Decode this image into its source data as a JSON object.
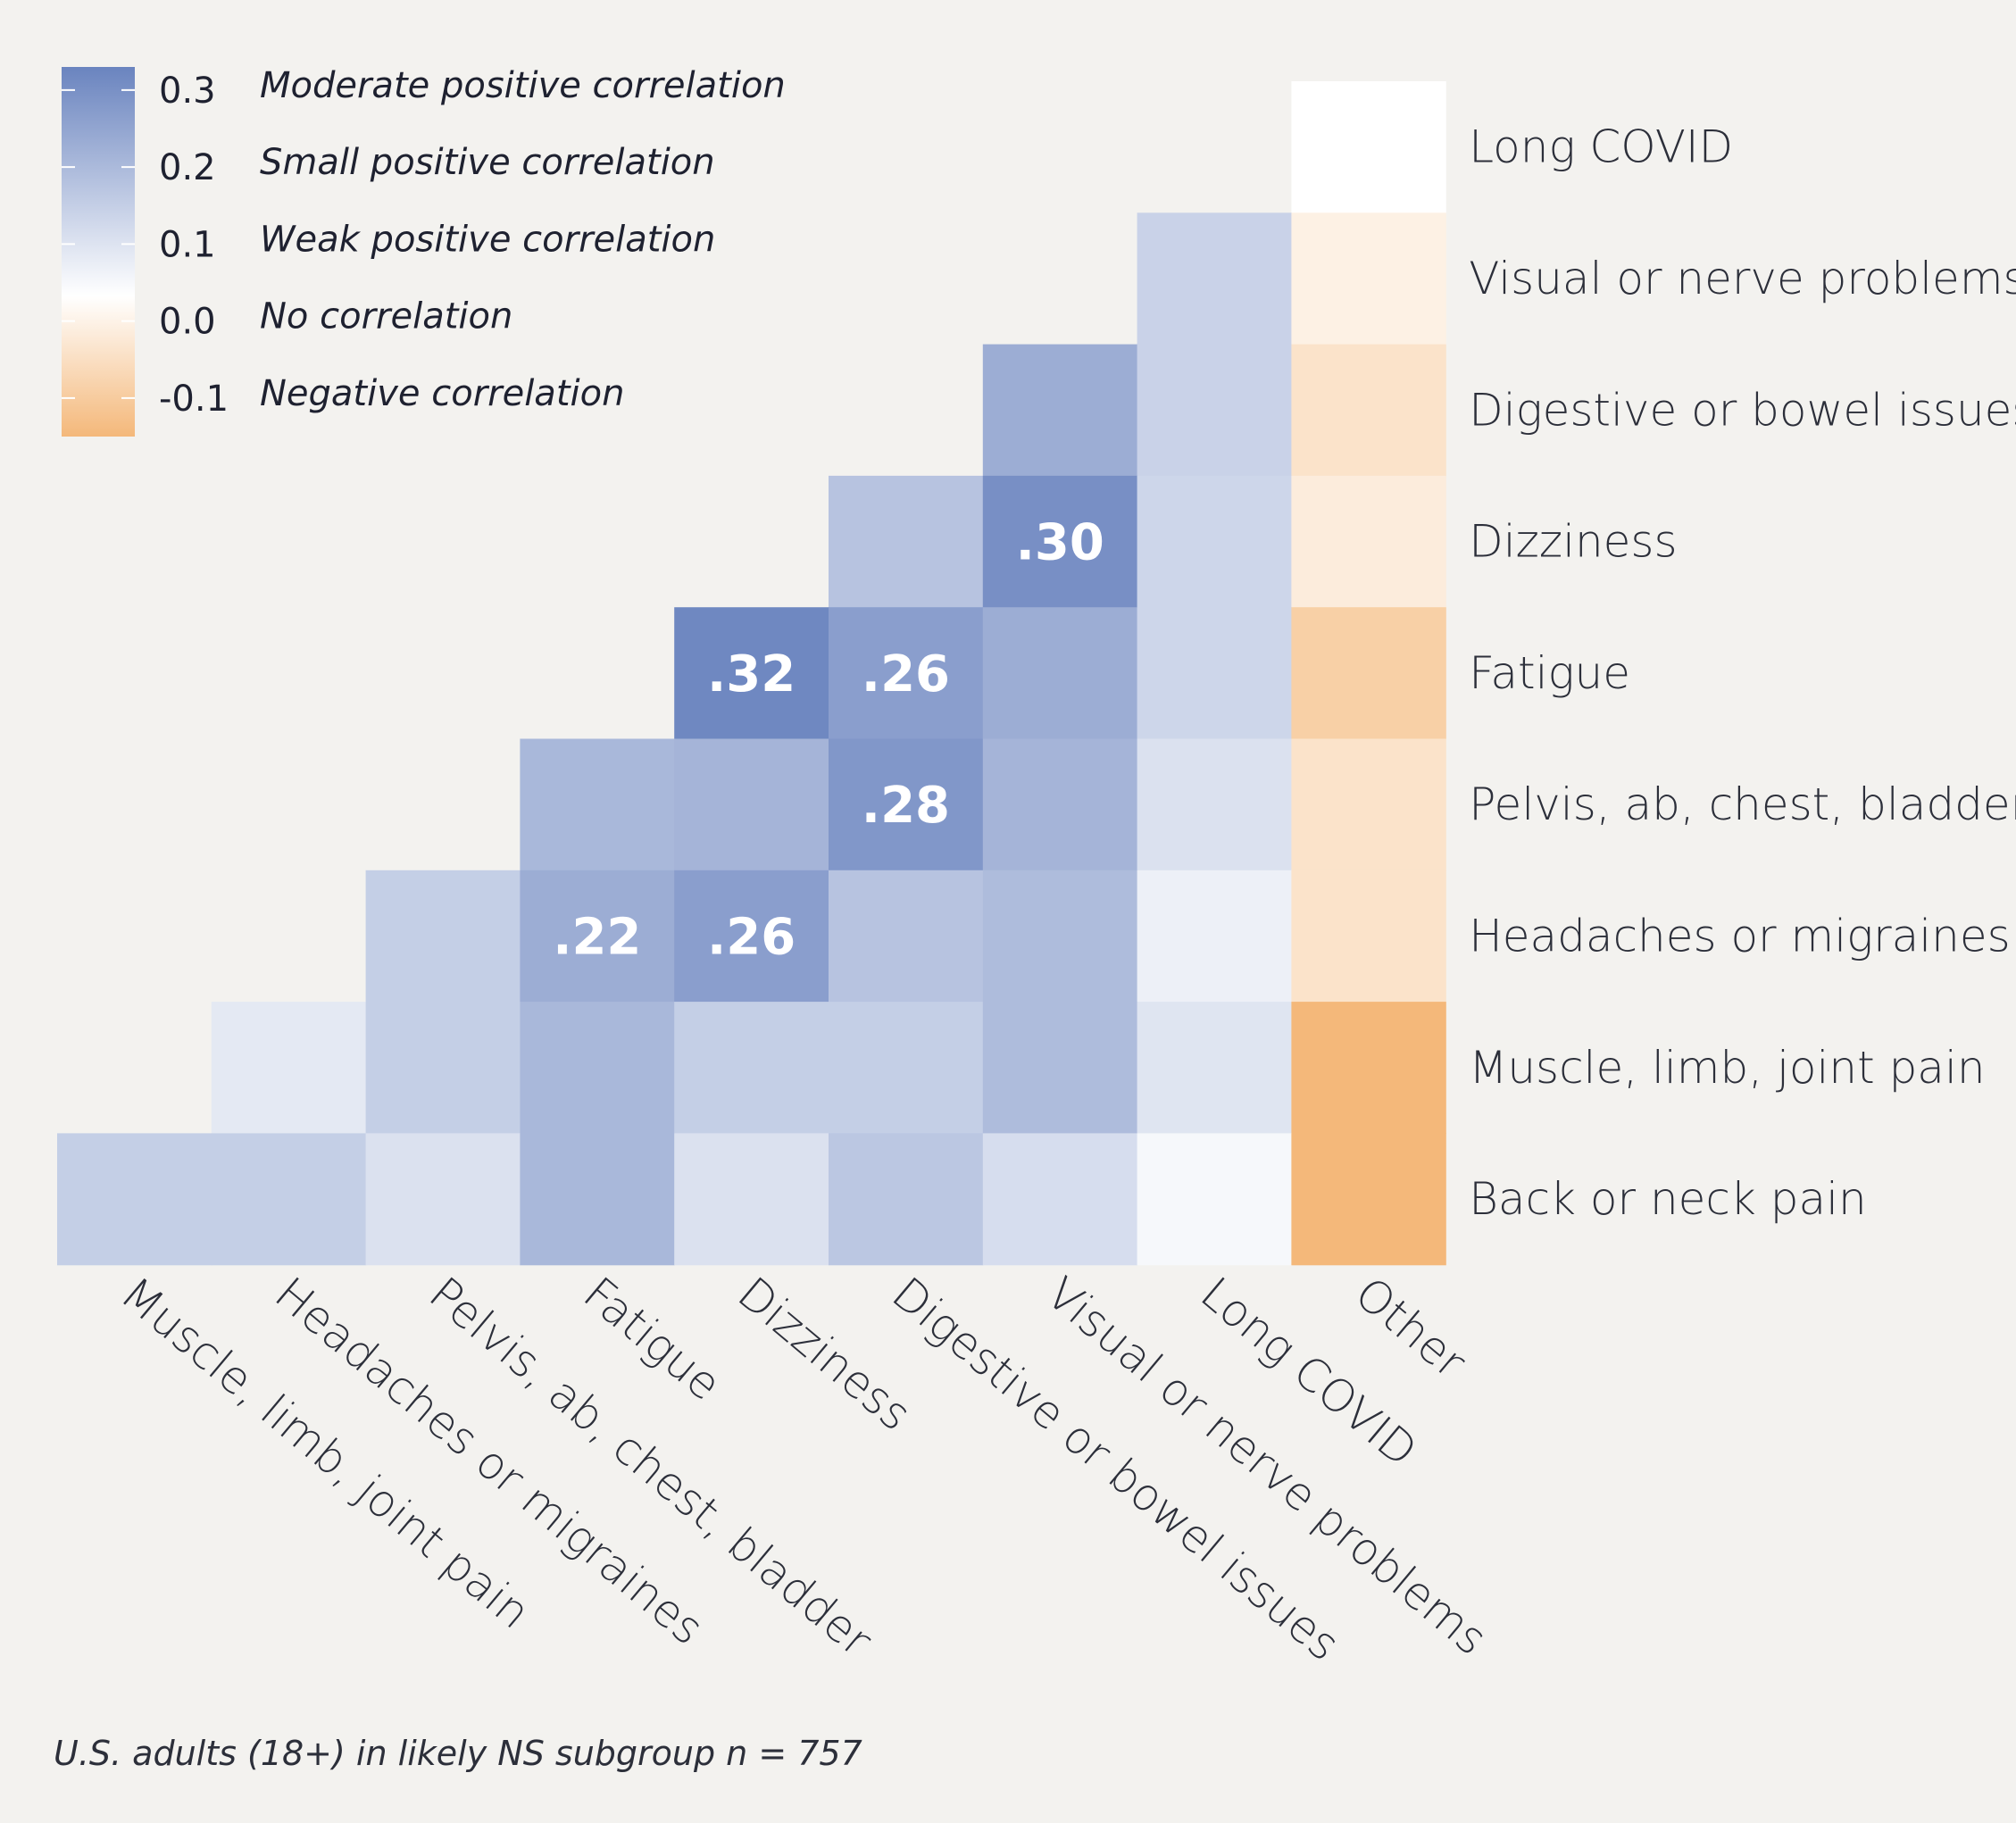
{
  "chart_data": {
    "type": "heatmap",
    "rows": [
      "Long COVID",
      "Visual or nerve problems",
      "Digestive or bowel issues",
      "Dizziness",
      "Fatigue",
      "Pelvis, ab, chest, bladder",
      "Headaches or migraines",
      "Muscle, limb, joint pain",
      "Back or neck pain"
    ],
    "columns": [
      "Muscle, limb, joint pain",
      "Headaches or migraines",
      "Pelvis, ab, chest, bladder",
      "Fatigue",
      "Dizziness",
      "Digestive or bowel issues",
      "Visual or nerve problems",
      "Long COVID",
      "Other"
    ],
    "values": [
      [
        null,
        null,
        null,
        null,
        null,
        null,
        null,
        null,
        0.0
      ],
      [
        null,
        null,
        null,
        null,
        null,
        null,
        null,
        0.12,
        -0.03
      ],
      [
        null,
        null,
        null,
        null,
        null,
        null,
        0.22,
        0.12,
        -0.06
      ],
      [
        null,
        null,
        null,
        null,
        null,
        0.16,
        0.3,
        0.11,
        -0.04
      ],
      [
        null,
        null,
        null,
        null,
        0.32,
        0.26,
        0.22,
        0.11,
        -0.1
      ],
      [
        null,
        null,
        null,
        0.19,
        0.2,
        0.28,
        0.2,
        0.08,
        -0.06
      ],
      [
        null,
        null,
        0.13,
        0.22,
        0.26,
        0.16,
        0.18,
        0.04,
        -0.06
      ],
      [
        null,
        0.06,
        0.13,
        0.19,
        0.13,
        0.13,
        0.18,
        0.07,
        -0.15
      ],
      [
        0.13,
        0.13,
        0.08,
        0.19,
        0.08,
        0.15,
        0.09,
        0.02,
        -0.15
      ]
    ],
    "cell_labels": [
      {
        "row": 3,
        "col": 6,
        "text": ".30"
      },
      {
        "row": 4,
        "col": 4,
        "text": ".32"
      },
      {
        "row": 4,
        "col": 5,
        "text": ".26"
      },
      {
        "row": 5,
        "col": 5,
        "text": ".28"
      },
      {
        "row": 6,
        "col": 3,
        "text": ".22"
      },
      {
        "row": 6,
        "col": 4,
        "text": ".26"
      }
    ],
    "color_scale": {
      "min": -0.15,
      "mid": 0.0,
      "max": 0.33,
      "negative_color": "#f4b87a",
      "zero_color": "#ffffff",
      "positive_color": "#6a84bf"
    },
    "legend": {
      "position": "top-left",
      "entries": [
        {
          "value": "0.3",
          "label": "Moderate positive correlation"
        },
        {
          "value": "0.2",
          "label": "Small positive correlation"
        },
        {
          "value": "0.1",
          "label": "Weak positive correlation"
        },
        {
          "value": "0.0",
          "label": "No correlation"
        },
        {
          "value": "-0.1",
          "label": "Negative correlation"
        }
      ]
    },
    "footnote": "U.S. adults (18+) in likely NS subgroup n = 757"
  }
}
